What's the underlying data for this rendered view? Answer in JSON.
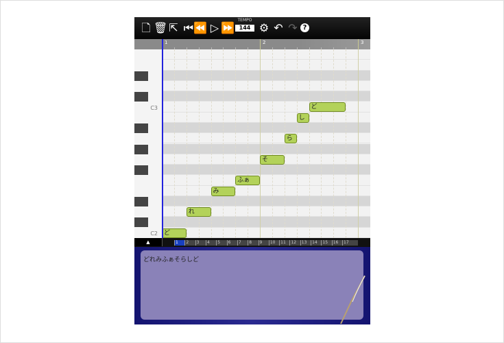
{
  "toolbar": {
    "buttons": [
      {
        "name": "new-file",
        "icon": "🗋"
      },
      {
        "name": "trash",
        "icon": "🗑"
      },
      {
        "name": "share",
        "icon": "⇱"
      },
      {
        "name": "rewind-start",
        "icon": "⏮"
      },
      {
        "name": "rewind",
        "icon": "⏪"
      },
      {
        "name": "play",
        "icon": "▷"
      },
      {
        "name": "fast-forward",
        "icon": "⏩"
      }
    ],
    "tempo_label": "TEMPO",
    "tempo_value": "144",
    "settings_icon": "⚙",
    "undo_icon": "↶",
    "redo_icon": "↷",
    "help_icon": "?"
  },
  "ruler": {
    "measures": [
      "1",
      "2",
      "3"
    ]
  },
  "keyboard": {
    "labels": {
      "c3": "C3",
      "c2": "C2"
    }
  },
  "notes": [
    {
      "lyric": "ど",
      "pitch": "C2",
      "start": 0,
      "length": 2
    },
    {
      "lyric": "れ",
      "pitch": "D2",
      "start": 2,
      "length": 2
    },
    {
      "lyric": "み",
      "pitch": "E2",
      "start": 4,
      "length": 2
    },
    {
      "lyric": "ふぁ",
      "pitch": "F2",
      "start": 6,
      "length": 2
    },
    {
      "lyric": "そ",
      "pitch": "G2",
      "start": 8,
      "length": 2
    },
    {
      "lyric": "ら",
      "pitch": "A2",
      "start": 10,
      "length": 1
    },
    {
      "lyric": "し",
      "pitch": "B2",
      "start": 11,
      "length": 1
    },
    {
      "lyric": "ど",
      "pitch": "C3",
      "start": 12,
      "length": 3
    }
  ],
  "bottom": {
    "up_icon": "▲",
    "measure_bar": [
      "1",
      "2",
      "3",
      "4",
      "5",
      "6",
      "7",
      "8",
      "9",
      "10",
      "11",
      "12",
      "13",
      "14",
      "15",
      "16",
      "17"
    ],
    "selected_measure": "1"
  },
  "lyrics_text": "どれみふぁそらしど",
  "colors": {
    "note": "#b3d25a",
    "playhead": "#2222dd",
    "lyrics_panel": "#8a82b8"
  }
}
